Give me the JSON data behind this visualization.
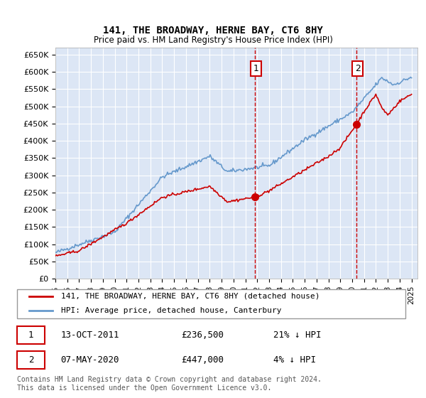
{
  "title": "141, THE BROADWAY, HERNE BAY, CT6 8HY",
  "subtitle": "Price paid vs. HM Land Registry's House Price Index (HPI)",
  "background_color": "#dce6f5",
  "plot_bg_color": "#dce6f5",
  "ylim": [
    0,
    670000
  ],
  "yticks": [
    0,
    50000,
    100000,
    150000,
    200000,
    250000,
    300000,
    350000,
    400000,
    450000,
    500000,
    550000,
    600000,
    650000
  ],
  "ytick_labels": [
    "£0",
    "£50K",
    "£100K",
    "£150K",
    "£200K",
    "£250K",
    "£300K",
    "£350K",
    "£400K",
    "£450K",
    "£500K",
    "£550K",
    "£600K",
    "£650K"
  ],
  "xtick_years": [
    1995,
    1996,
    1997,
    1998,
    1999,
    2000,
    2001,
    2002,
    2003,
    2004,
    2005,
    2006,
    2007,
    2008,
    2009,
    2010,
    2011,
    2012,
    2013,
    2014,
    2015,
    2016,
    2017,
    2018,
    2019,
    2020,
    2021,
    2022,
    2023,
    2024,
    2025
  ],
  "sale1_x": 2011.79,
  "sale1_y": 236500,
  "sale1_label": "1",
  "sale2_x": 2020.36,
  "sale2_y": 447000,
  "sale2_label": "2",
  "hpi_color": "#6699cc",
  "price_color": "#cc0000",
  "marker_color": "#cc0000",
  "annotation_box_color": "#cc0000",
  "legend_label_price": "141, THE BROADWAY, HERNE BAY, CT6 8HY (detached house)",
  "legend_label_hpi": "HPI: Average price, detached house, Canterbury",
  "table_row1": [
    "1",
    "13-OCT-2011",
    "£236,500",
    "21% ↓ HPI"
  ],
  "table_row2": [
    "2",
    "07-MAY-2020",
    "£447,000",
    "4% ↓ HPI"
  ],
  "footnote": "Contains HM Land Registry data © Crown copyright and database right 2024.\nThis data is licensed under the Open Government Licence v3.0.",
  "grid_color": "#ffffff",
  "vline_color": "#cc0000"
}
